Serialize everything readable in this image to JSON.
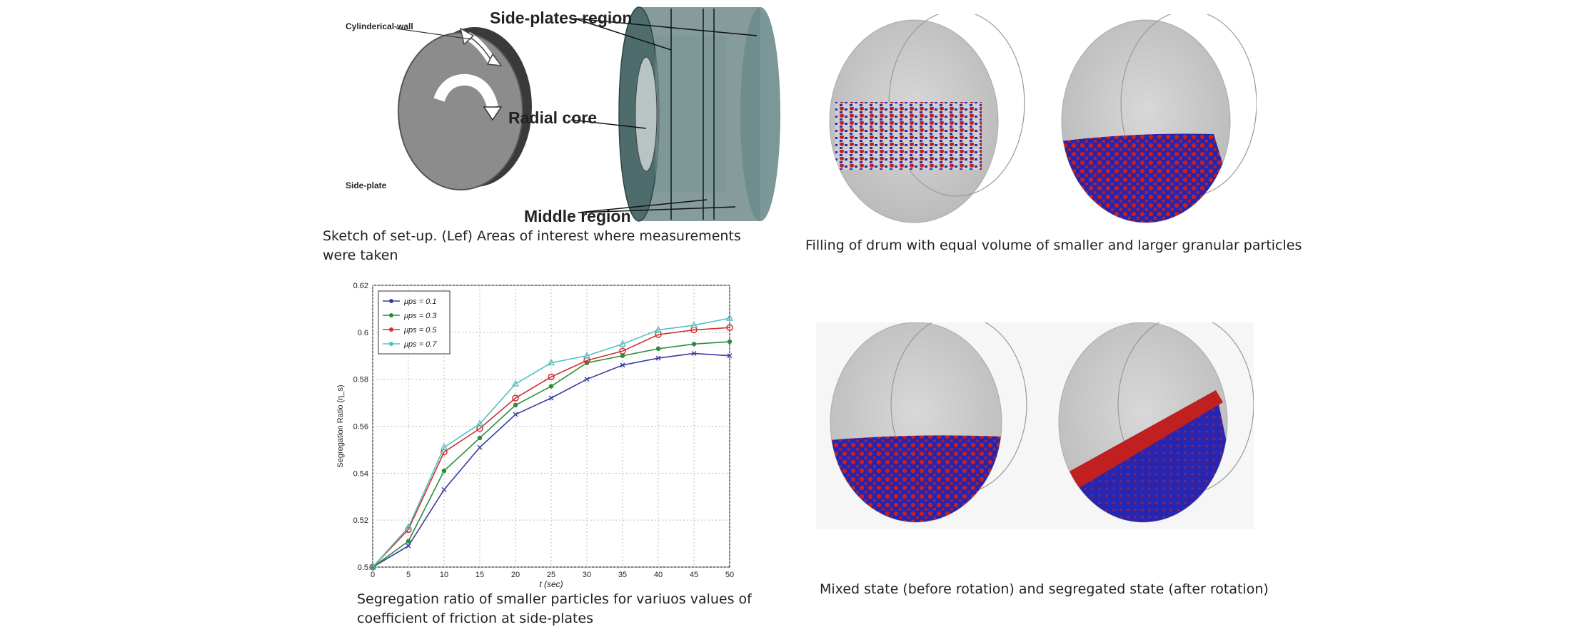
{
  "figure_sketch": {
    "label_cyl_wall": "Cylinderical-wall",
    "label_side_plate": "Side-plate",
    "label_side_plates_region": "Side-plates region",
    "label_radial_core": "Radial core",
    "label_middle_region": "Middle region",
    "caption_line1": "Sketch of set-up. (Lef) Areas of interest where measurements",
    "caption_line2": "were taken"
  },
  "figure_filling": {
    "caption": "Filling of drum with equal volume of smaller and larger granular particles"
  },
  "figure_mixed": {
    "caption": "Mixed state (before rotation) and segregated state (after rotation)"
  },
  "figure_chart": {
    "caption_line1": "Segregation ratio of smaller particles for variuos values of",
    "caption_line2": "coefficient of friction at side-plates"
  },
  "chart_data": {
    "type": "line",
    "xlabel": "t (sec)",
    "ylabel": "Segregation Ratio (η_s)",
    "xlim": [
      0,
      50
    ],
    "ylim": [
      0.5,
      0.62
    ],
    "x_ticks": [
      0,
      5,
      10,
      15,
      20,
      25,
      30,
      35,
      40,
      45,
      50
    ],
    "y_ticks": [
      0.5,
      0.52,
      0.54,
      0.56,
      0.58,
      0.6,
      0.62
    ],
    "grid": true,
    "legend_position": "top-left",
    "x": [
      0,
      5,
      10,
      15,
      20,
      25,
      30,
      35,
      40,
      45,
      50
    ],
    "series": [
      {
        "name": "μps = 0.1",
        "color": "#3b3b9e",
        "marker": "x",
        "values": [
          0.5,
          0.509,
          0.533,
          0.551,
          0.565,
          0.572,
          0.58,
          0.586,
          0.589,
          0.591,
          0.59
        ]
      },
      {
        "name": "μps = 0.3",
        "color": "#2e8b3a",
        "marker": "dot",
        "values": [
          0.5,
          0.511,
          0.541,
          0.555,
          0.569,
          0.577,
          0.587,
          0.59,
          0.593,
          0.595,
          0.596
        ]
      },
      {
        "name": "μps = 0.5",
        "color": "#d03030",
        "marker": "circle",
        "values": [
          0.5,
          0.516,
          0.549,
          0.559,
          0.572,
          0.581,
          0.588,
          0.592,
          0.599,
          0.601,
          0.602
        ]
      },
      {
        "name": "μps = 0.7",
        "color": "#55c0c0",
        "marker": "triangle",
        "values": [
          0.5,
          0.517,
          0.551,
          0.561,
          0.578,
          0.587,
          0.59,
          0.595,
          0.601,
          0.603,
          0.606
        ]
      }
    ]
  }
}
